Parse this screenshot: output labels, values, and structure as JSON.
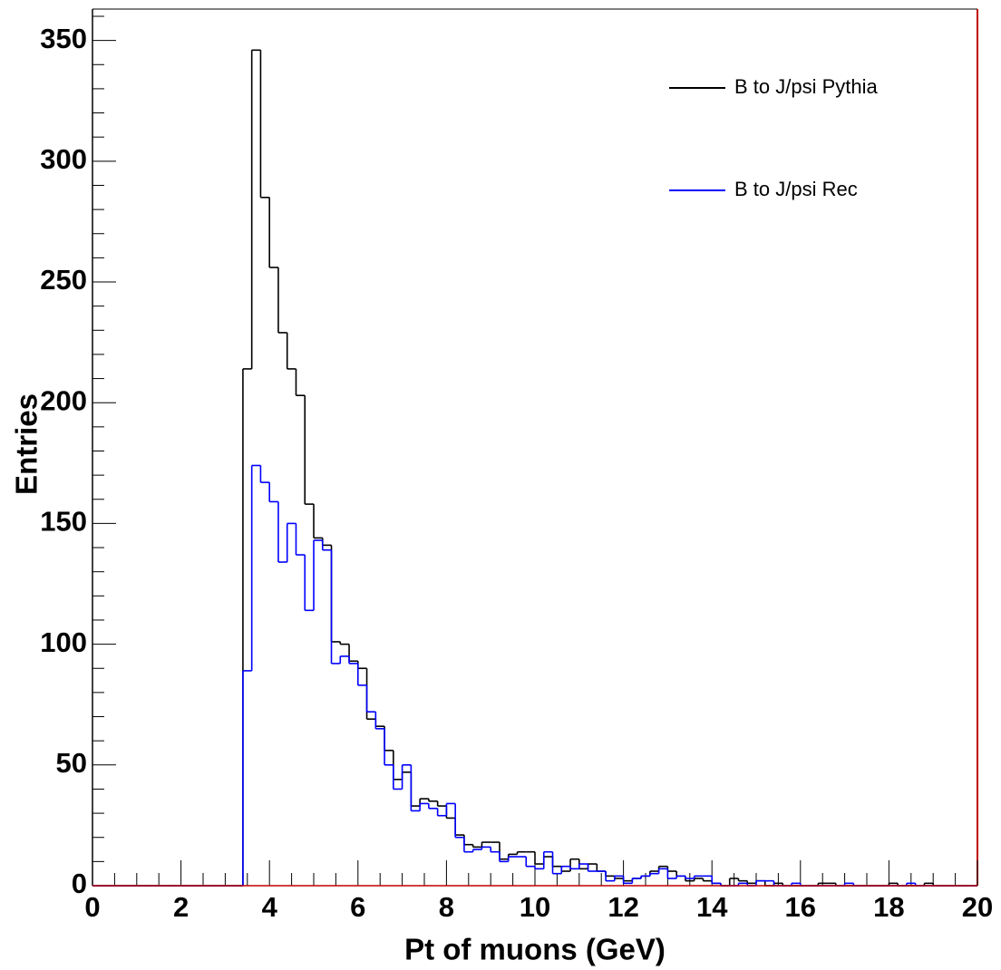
{
  "chart_data": {
    "type": "histogram",
    "xlabel": "Pt of muons (GeV)",
    "ylabel": "Entries",
    "bins": [
      0,
      0.2,
      0.4,
      0.6,
      0.8,
      1,
      1.2,
      1.4,
      1.6,
      1.8,
      2,
      2.2,
      2.4,
      2.6,
      2.8,
      3,
      3.2,
      3.4,
      3.6,
      3.8,
      4,
      4.2,
      4.4,
      4.6,
      4.8,
      5,
      5.2,
      5.4,
      5.6,
      5.8,
      6,
      6.2,
      6.4,
      6.6,
      6.8,
      7,
      7.2,
      7.4,
      7.6,
      7.8,
      8,
      8.2,
      8.4,
      8.6,
      8.8,
      9,
      9.2,
      9.4,
      9.6,
      9.8,
      10,
      10.2,
      10.4,
      10.6,
      10.8,
      11,
      11.2,
      11.4,
      11.6,
      11.8,
      12,
      12.2,
      12.4,
      12.6,
      12.8,
      13,
      13.2,
      13.4,
      13.6,
      13.8,
      14,
      14.2,
      14.4,
      14.6,
      14.8,
      15,
      15.2,
      15.4,
      15.6,
      15.8,
      16,
      16.2,
      16.4,
      16.6,
      16.8,
      17,
      17.2,
      17.4,
      17.6,
      17.8,
      18,
      18.2,
      18.4,
      18.6,
      18.8,
      19,
      19.2,
      19.4,
      19.6,
      19.8,
      20
    ],
    "series": [
      {
        "name": "B to J/psi Pythia",
        "color": "#000000",
        "values": [
          0,
          0,
          0,
          0,
          0,
          0,
          0,
          0,
          0,
          0,
          0,
          0,
          0,
          0,
          0,
          0,
          0,
          214,
          346,
          285,
          256,
          229,
          214,
          203,
          158,
          144,
          141,
          101,
          100,
          93,
          90,
          69,
          66,
          56,
          44,
          47,
          33,
          36,
          35,
          33,
          28,
          21,
          17,
          16,
          18,
          18,
          11,
          13,
          14,
          14,
          9,
          12,
          8,
          6,
          11,
          7,
          9,
          6,
          4,
          3,
          2,
          3,
          4,
          6,
          8,
          6,
          4,
          2,
          3,
          2,
          1,
          0,
          3,
          2,
          1,
          2,
          0,
          1,
          0,
          0,
          0,
          0,
          1,
          1,
          0,
          0,
          0,
          0,
          0,
          0,
          1,
          0,
          0,
          0,
          1,
          0,
          0,
          0,
          0,
          0
        ]
      },
      {
        "name": "B to J/psi Rec",
        "color": "#0000ff",
        "values": [
          0,
          0,
          0,
          0,
          0,
          0,
          0,
          0,
          0,
          0,
          0,
          0,
          0,
          0,
          0,
          0,
          0,
          89,
          174,
          167,
          159,
          134,
          150,
          137,
          114,
          143,
          139,
          92,
          95,
          92,
          83,
          72,
          65,
          50,
          40,
          50,
          31,
          34,
          32,
          29,
          34,
          20,
          14,
          15,
          16,
          14,
          10,
          12,
          12,
          8,
          7,
          14,
          5,
          8,
          7,
          9,
          6,
          6,
          2,
          4,
          1,
          3,
          4,
          5,
          7,
          3,
          4,
          3,
          4,
          4,
          1,
          0,
          0,
          1,
          0,
          2,
          2,
          0,
          0,
          1,
          0,
          0,
          0,
          0,
          0,
          1,
          0,
          0,
          0,
          0,
          0,
          0,
          1,
          0,
          0,
          0,
          0,
          0,
          0,
          0
        ]
      }
    ],
    "xlim": [
      0,
      20
    ],
    "ylim": [
      0,
      363
    ],
    "xticks": [
      0,
      2,
      4,
      6,
      8,
      10,
      12,
      14,
      16,
      18,
      20
    ],
    "yticks": [
      0,
      50,
      100,
      150,
      200,
      250,
      300,
      350
    ],
    "legend": "upper right"
  }
}
